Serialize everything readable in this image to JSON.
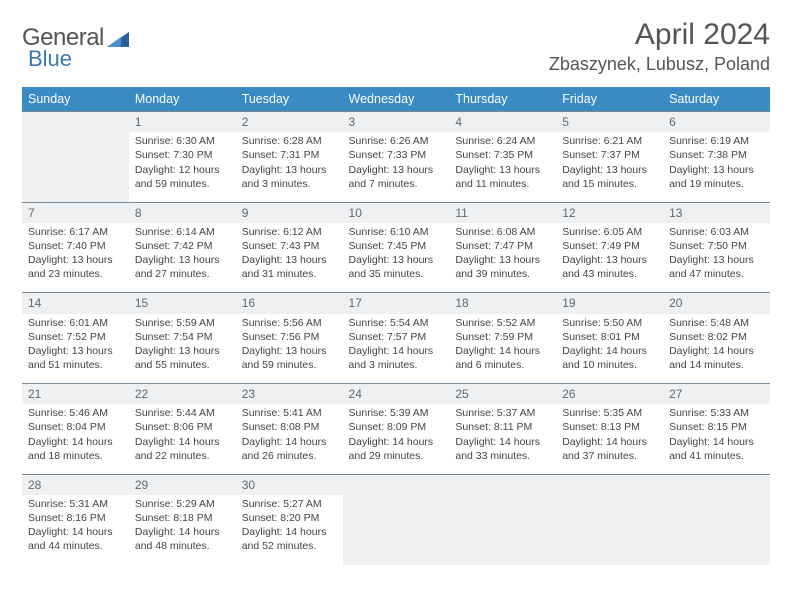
{
  "brand": {
    "name1": "General",
    "name2": "Blue",
    "color1": "#6a6a6a",
    "color2": "#3a78b5",
    "shape_color": "#2a5f9e"
  },
  "header": {
    "month": "April 2024",
    "location": "Zbaszynek, Lubusz, Poland"
  },
  "style": {
    "header_bg": "#3a8ac4",
    "header_fg": "#ffffff",
    "daynum_bg": "#eef0f1",
    "daynum_border": "#7a8a96",
    "text_color": "#444444",
    "font_size_cell": 10.5,
    "font_size_header": 12.5,
    "font_size_title": 30,
    "font_size_location": 18
  },
  "weekdays": [
    "Sunday",
    "Monday",
    "Tuesday",
    "Wednesday",
    "Thursday",
    "Friday",
    "Saturday"
  ],
  "weeks": [
    {
      "nums": [
        "",
        "1",
        "2",
        "3",
        "4",
        "5",
        "6"
      ],
      "cells": [
        null,
        {
          "sr": "Sunrise: 6:30 AM",
          "ss": "Sunset: 7:30 PM",
          "d1": "Daylight: 12 hours",
          "d2": "and 59 minutes."
        },
        {
          "sr": "Sunrise: 6:28 AM",
          "ss": "Sunset: 7:31 PM",
          "d1": "Daylight: 13 hours",
          "d2": "and 3 minutes."
        },
        {
          "sr": "Sunrise: 6:26 AM",
          "ss": "Sunset: 7:33 PM",
          "d1": "Daylight: 13 hours",
          "d2": "and 7 minutes."
        },
        {
          "sr": "Sunrise: 6:24 AM",
          "ss": "Sunset: 7:35 PM",
          "d1": "Daylight: 13 hours",
          "d2": "and 11 minutes."
        },
        {
          "sr": "Sunrise: 6:21 AM",
          "ss": "Sunset: 7:37 PM",
          "d1": "Daylight: 13 hours",
          "d2": "and 15 minutes."
        },
        {
          "sr": "Sunrise: 6:19 AM",
          "ss": "Sunset: 7:38 PM",
          "d1": "Daylight: 13 hours",
          "d2": "and 19 minutes."
        }
      ]
    },
    {
      "nums": [
        "7",
        "8",
        "9",
        "10",
        "11",
        "12",
        "13"
      ],
      "cells": [
        {
          "sr": "Sunrise: 6:17 AM",
          "ss": "Sunset: 7:40 PM",
          "d1": "Daylight: 13 hours",
          "d2": "and 23 minutes."
        },
        {
          "sr": "Sunrise: 6:14 AM",
          "ss": "Sunset: 7:42 PM",
          "d1": "Daylight: 13 hours",
          "d2": "and 27 minutes."
        },
        {
          "sr": "Sunrise: 6:12 AM",
          "ss": "Sunset: 7:43 PM",
          "d1": "Daylight: 13 hours",
          "d2": "and 31 minutes."
        },
        {
          "sr": "Sunrise: 6:10 AM",
          "ss": "Sunset: 7:45 PM",
          "d1": "Daylight: 13 hours",
          "d2": "and 35 minutes."
        },
        {
          "sr": "Sunrise: 6:08 AM",
          "ss": "Sunset: 7:47 PM",
          "d1": "Daylight: 13 hours",
          "d2": "and 39 minutes."
        },
        {
          "sr": "Sunrise: 6:05 AM",
          "ss": "Sunset: 7:49 PM",
          "d1": "Daylight: 13 hours",
          "d2": "and 43 minutes."
        },
        {
          "sr": "Sunrise: 6:03 AM",
          "ss": "Sunset: 7:50 PM",
          "d1": "Daylight: 13 hours",
          "d2": "and 47 minutes."
        }
      ]
    },
    {
      "nums": [
        "14",
        "15",
        "16",
        "17",
        "18",
        "19",
        "20"
      ],
      "cells": [
        {
          "sr": "Sunrise: 6:01 AM",
          "ss": "Sunset: 7:52 PM",
          "d1": "Daylight: 13 hours",
          "d2": "and 51 minutes."
        },
        {
          "sr": "Sunrise: 5:59 AM",
          "ss": "Sunset: 7:54 PM",
          "d1": "Daylight: 13 hours",
          "d2": "and 55 minutes."
        },
        {
          "sr": "Sunrise: 5:56 AM",
          "ss": "Sunset: 7:56 PM",
          "d1": "Daylight: 13 hours",
          "d2": "and 59 minutes."
        },
        {
          "sr": "Sunrise: 5:54 AM",
          "ss": "Sunset: 7:57 PM",
          "d1": "Daylight: 14 hours",
          "d2": "and 3 minutes."
        },
        {
          "sr": "Sunrise: 5:52 AM",
          "ss": "Sunset: 7:59 PM",
          "d1": "Daylight: 14 hours",
          "d2": "and 6 minutes."
        },
        {
          "sr": "Sunrise: 5:50 AM",
          "ss": "Sunset: 8:01 PM",
          "d1": "Daylight: 14 hours",
          "d2": "and 10 minutes."
        },
        {
          "sr": "Sunrise: 5:48 AM",
          "ss": "Sunset: 8:02 PM",
          "d1": "Daylight: 14 hours",
          "d2": "and 14 minutes."
        }
      ]
    },
    {
      "nums": [
        "21",
        "22",
        "23",
        "24",
        "25",
        "26",
        "27"
      ],
      "cells": [
        {
          "sr": "Sunrise: 5:46 AM",
          "ss": "Sunset: 8:04 PM",
          "d1": "Daylight: 14 hours",
          "d2": "and 18 minutes."
        },
        {
          "sr": "Sunrise: 5:44 AM",
          "ss": "Sunset: 8:06 PM",
          "d1": "Daylight: 14 hours",
          "d2": "and 22 minutes."
        },
        {
          "sr": "Sunrise: 5:41 AM",
          "ss": "Sunset: 8:08 PM",
          "d1": "Daylight: 14 hours",
          "d2": "and 26 minutes."
        },
        {
          "sr": "Sunrise: 5:39 AM",
          "ss": "Sunset: 8:09 PM",
          "d1": "Daylight: 14 hours",
          "d2": "and 29 minutes."
        },
        {
          "sr": "Sunrise: 5:37 AM",
          "ss": "Sunset: 8:11 PM",
          "d1": "Daylight: 14 hours",
          "d2": "and 33 minutes."
        },
        {
          "sr": "Sunrise: 5:35 AM",
          "ss": "Sunset: 8:13 PM",
          "d1": "Daylight: 14 hours",
          "d2": "and 37 minutes."
        },
        {
          "sr": "Sunrise: 5:33 AM",
          "ss": "Sunset: 8:15 PM",
          "d1": "Daylight: 14 hours",
          "d2": "and 41 minutes."
        }
      ]
    },
    {
      "nums": [
        "28",
        "29",
        "30",
        "",
        "",
        "",
        ""
      ],
      "cells": [
        {
          "sr": "Sunrise: 5:31 AM",
          "ss": "Sunset: 8:16 PM",
          "d1": "Daylight: 14 hours",
          "d2": "and 44 minutes."
        },
        {
          "sr": "Sunrise: 5:29 AM",
          "ss": "Sunset: 8:18 PM",
          "d1": "Daylight: 14 hours",
          "d2": "and 48 minutes."
        },
        {
          "sr": "Sunrise: 5:27 AM",
          "ss": "Sunset: 8:20 PM",
          "d1": "Daylight: 14 hours",
          "d2": "and 52 minutes."
        },
        null,
        null,
        null,
        null
      ]
    }
  ]
}
